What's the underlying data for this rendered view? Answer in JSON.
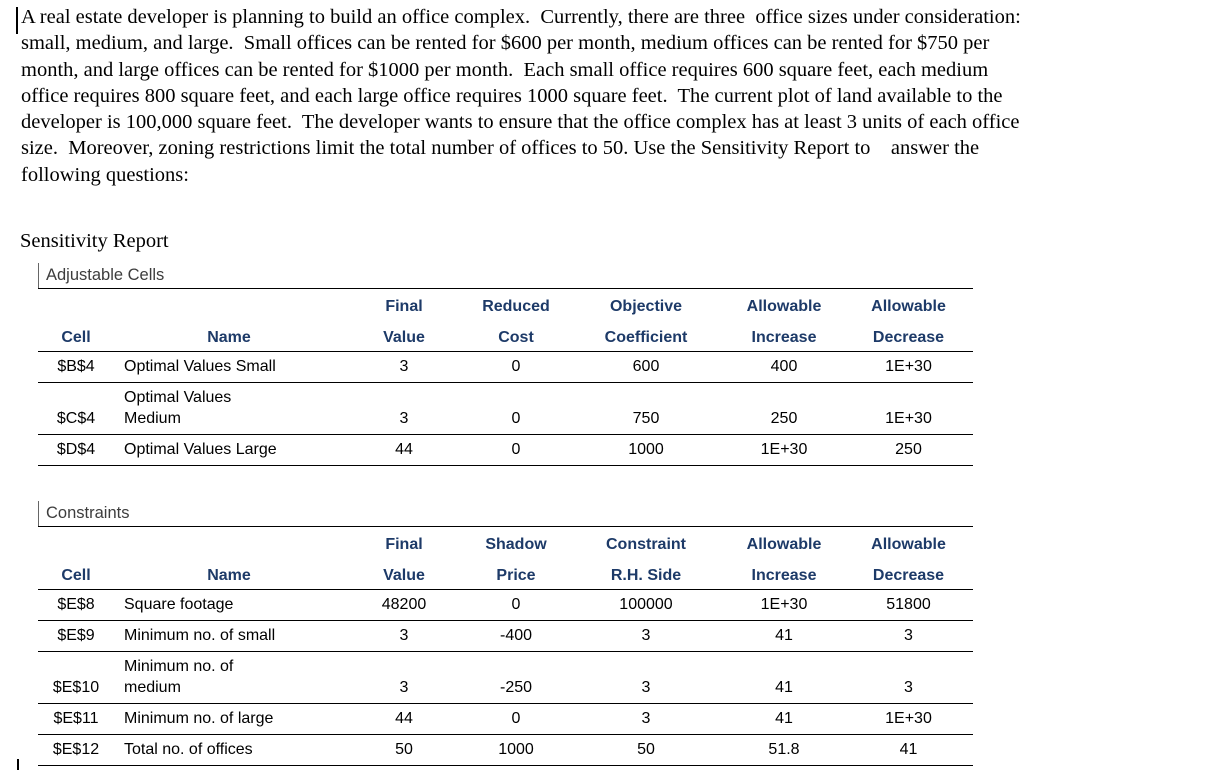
{
  "paragraph": "A real estate developer is planning to build an office complex.  Currently, there are three  office sizes under consideration:\nsmall, medium, and large.  Small offices can be rented for $600 per month, medium offices can be rented for $750 per\nmonth, and large offices can be rented for $1000 per month.  Each small office requires 600 square feet, each medium\noffice requires 800 square feet, and each large office requires 1000 square feet.  The current plot of land available to the\ndeveloper is 100,000 square feet.  The developer wants to ensure that the office complex has at least 3 units of each office\nsize.  Moreover, zoning restrictions limit the total number of offices to 50. Use the Sensitivity Report to    answer the\nfollowing questions:",
  "report": {
    "title": "Sensitivity Report",
    "adjustable": {
      "label": "Adjustable Cells",
      "header_top": [
        "",
        "",
        "Final",
        "Reduced",
        "Objective",
        "Allowable",
        "Allowable"
      ],
      "header_bottom": [
        "Cell",
        "Name",
        "Value",
        "Cost",
        "Coefficient",
        "Increase",
        "Decrease"
      ],
      "rows": [
        {
          "cell": "$B$4",
          "name": "Optimal Values Small",
          "final_value": "3",
          "reduced_cost": "0",
          "objective_coefficient": "600",
          "allowable_increase": "400",
          "allowable_decrease": "1E+30"
        },
        {
          "cell": "$C$4",
          "name": "Optimal Values\nMedium",
          "final_value": "3",
          "reduced_cost": "0",
          "objective_coefficient": "750",
          "allowable_increase": "250",
          "allowable_decrease": "1E+30"
        },
        {
          "cell": "$D$4",
          "name": "Optimal Values Large",
          "final_value": "44",
          "reduced_cost": "0",
          "objective_coefficient": "1000",
          "allowable_increase": "1E+30",
          "allowable_decrease": "250"
        }
      ]
    },
    "constraints": {
      "label": "Constraints",
      "header_top": [
        "",
        "",
        "Final",
        "Shadow",
        "Constraint",
        "Allowable",
        "Allowable"
      ],
      "header_bottom": [
        "Cell",
        "Name",
        "Value",
        "Price",
        "R.H. Side",
        "Increase",
        "Decrease"
      ],
      "rows": [
        {
          "cell": "$E$8",
          "name": "Square footage",
          "final_value": "48200",
          "shadow_price": "0",
          "constraint_rhs": "100000",
          "allowable_increase": "1E+30",
          "allowable_decrease": "51800"
        },
        {
          "cell": "$E$9",
          "name": "Minimum no. of small",
          "final_value": "3",
          "shadow_price": "-400",
          "constraint_rhs": "3",
          "allowable_increase": "41",
          "allowable_decrease": "3"
        },
        {
          "cell": "$E$10",
          "name": "Minimum no. of\nmedium",
          "final_value": "3",
          "shadow_price": "-250",
          "constraint_rhs": "3",
          "allowable_increase": "41",
          "allowable_decrease": "3"
        },
        {
          "cell": "$E$11",
          "name": "Minimum no. of large",
          "final_value": "44",
          "shadow_price": "0",
          "constraint_rhs": "3",
          "allowable_increase": "41",
          "allowable_decrease": "1E+30"
        },
        {
          "cell": "$E$12",
          "name": "Total no. of offices",
          "final_value": "50",
          "shadow_price": "1000",
          "constraint_rhs": "50",
          "allowable_increase": "51.8",
          "allowable_decrease": "41"
        }
      ]
    }
  },
  "colors": {
    "header_text": "#1d3a68",
    "body_text": "#000000",
    "background": "#ffffff"
  }
}
